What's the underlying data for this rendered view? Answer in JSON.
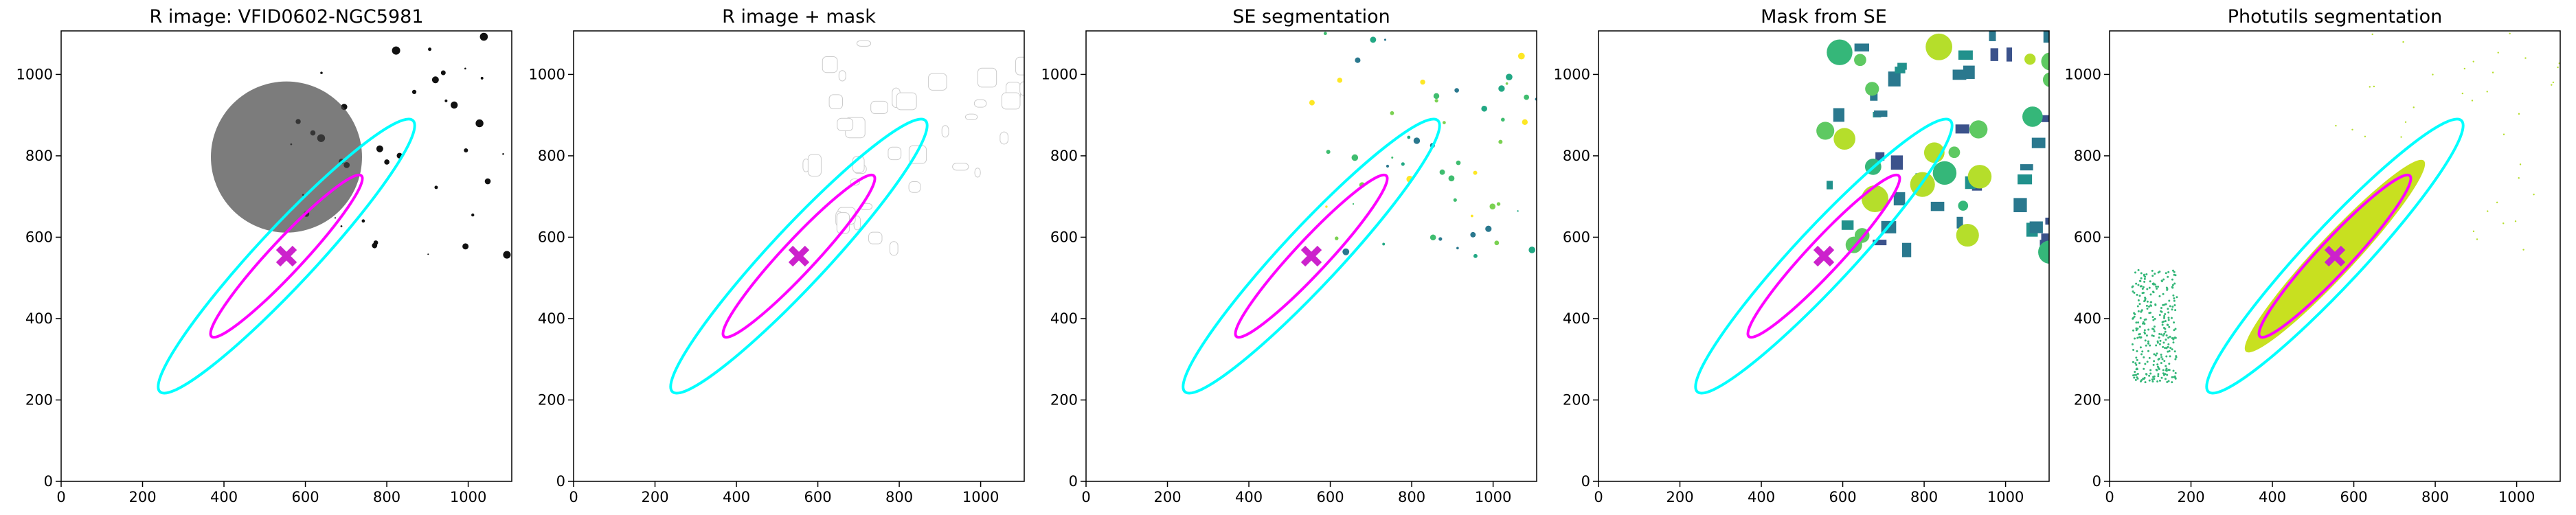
{
  "chart_data": [
    {
      "type": "image",
      "title": "R image: VFID0602-NGC5981",
      "xlim": [
        0,
        1107
      ],
      "ylim": [
        0,
        1107
      ],
      "xticks": [
        0,
        200,
        400,
        600,
        800,
        1000
      ],
      "yticks": [
        0,
        200,
        400,
        600,
        800,
        1000
      ]
    },
    {
      "type": "image",
      "title": "R image + mask",
      "xlim": [
        0,
        1107
      ],
      "ylim": [
        0,
        1107
      ],
      "xticks": [
        0,
        200,
        400,
        600,
        800,
        1000
      ],
      "yticks": [
        0,
        200,
        400,
        600,
        800,
        1000
      ]
    },
    {
      "type": "image",
      "title": "SE segmentation",
      "xlim": [
        0,
        1107
      ],
      "ylim": [
        0,
        1107
      ],
      "xticks": [
        0,
        200,
        400,
        600,
        800,
        1000
      ],
      "yticks": [
        0,
        200,
        400,
        600,
        800,
        1000
      ]
    },
    {
      "type": "image",
      "title": "Mask from SE",
      "xlim": [
        0,
        1107
      ],
      "ylim": [
        0,
        1107
      ],
      "xticks": [
        0,
        200,
        400,
        600,
        800,
        1000
      ],
      "yticks": [
        0,
        200,
        400,
        600,
        800,
        1000
      ]
    },
    {
      "type": "image",
      "title": "Photutils segmentation",
      "xlim": [
        0,
        1107
      ],
      "ylim": [
        0,
        1107
      ],
      "xticks": [
        0,
        200,
        400,
        600,
        800,
        1000
      ],
      "yticks": [
        0,
        200,
        400,
        600,
        800,
        1000
      ]
    }
  ]
}
